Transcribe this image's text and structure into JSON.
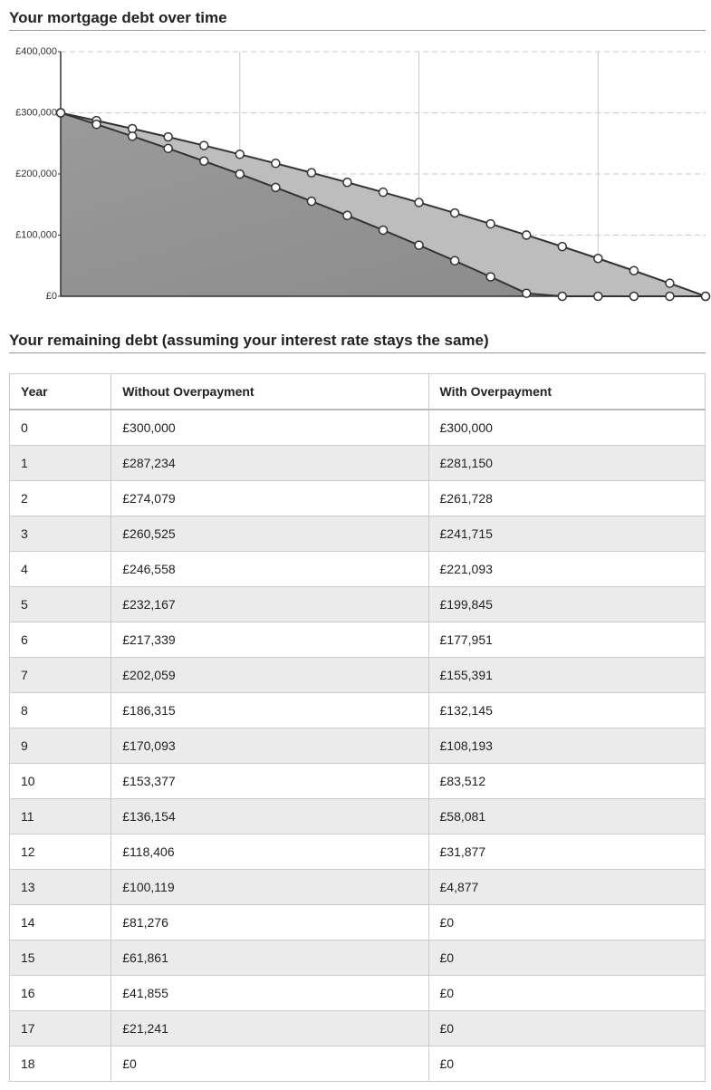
{
  "chart_data": {
    "type": "area",
    "title": "Your mortgage debt over time",
    "x": [
      0,
      1,
      2,
      3,
      4,
      5,
      6,
      7,
      8,
      9,
      10,
      11,
      12,
      13,
      14,
      15,
      16,
      17,
      18
    ],
    "xlim": [
      0,
      18
    ],
    "xticks": [
      0,
      5,
      10,
      15
    ],
    "ylim": [
      0,
      400000
    ],
    "yticks": [
      {
        "value": 0,
        "label": "£0"
      },
      {
        "value": 100000,
        "label": "£100,000"
      },
      {
        "value": 200000,
        "label": "£200,000"
      },
      {
        "value": 300000,
        "label": "£300,000"
      },
      {
        "value": 400000,
        "label": "£400,000"
      }
    ],
    "grid": true,
    "series": [
      {
        "color": "#bdbdbd",
        "values": [
          300000,
          287234,
          274079,
          260525,
          246558,
          232167,
          217339,
          202059,
          186315,
          170093,
          153377,
          136154,
          118406,
          100119,
          81276,
          61861,
          41855,
          21241,
          0
        ]
      },
      {
        "color": "#939393",
        "values": [
          300000,
          281150,
          261728,
          241715,
          221093,
          199845,
          177951,
          155391,
          132145,
          108193,
          83512,
          58081,
          31877,
          4877,
          0,
          0,
          0,
          0,
          0
        ]
      }
    ]
  },
  "table": {
    "title": "Your remaining debt (assuming your interest rate stays the same)",
    "columns": [
      "Year",
      "Without Overpayment",
      "With Overpayment"
    ],
    "rows": [
      [
        "0",
        "£300,000",
        "£300,000"
      ],
      [
        "1",
        "£287,234",
        "£281,150"
      ],
      [
        "2",
        "£274,079",
        "£261,728"
      ],
      [
        "3",
        "£260,525",
        "£241,715"
      ],
      [
        "4",
        "£246,558",
        "£221,093"
      ],
      [
        "5",
        "£232,167",
        "£199,845"
      ],
      [
        "6",
        "£217,339",
        "£177,951"
      ],
      [
        "7",
        "£202,059",
        "£155,391"
      ],
      [
        "8",
        "£186,315",
        "£132,145"
      ],
      [
        "9",
        "£170,093",
        "£108,193"
      ],
      [
        "10",
        "£153,377",
        "£83,512"
      ],
      [
        "11",
        "£136,154",
        "£58,081"
      ],
      [
        "12",
        "£118,406",
        "£31,877"
      ],
      [
        "13",
        "£100,119",
        "£4,877"
      ],
      [
        "14",
        "£81,276",
        "£0"
      ],
      [
        "15",
        "£61,861",
        "£0"
      ],
      [
        "16",
        "£41,855",
        "£0"
      ],
      [
        "17",
        "£21,241",
        "£0"
      ],
      [
        "18",
        "£0",
        "£0"
      ]
    ]
  }
}
